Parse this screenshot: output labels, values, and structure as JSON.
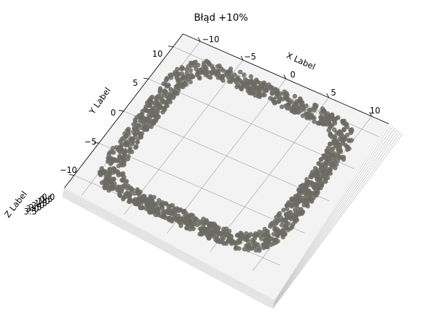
{
  "chart_data": {
    "type": "scatter3d",
    "title": "Błąd +10%",
    "xlabel": "X Label",
    "ylabel": "Y Label",
    "zlabel": "Z Label",
    "xlim": [
      -12,
      12
    ],
    "ylim": [
      -12,
      12
    ],
    "x_ticks": [
      "−10",
      "−5",
      "0",
      "5",
      "10"
    ],
    "y_ticks": [
      "10",
      "5",
      "0",
      "−5",
      "−10"
    ],
    "z_ticks": [
      "0.0",
      "0.5",
      "1.0",
      "1.5",
      "2.0",
      "2.5",
      "3.0",
      "3.5"
    ],
    "grid": true,
    "marker_color": "#6b6b63",
    "series": [
      {
        "shape": "rounded-square ring",
        "half_width": 9.5,
        "band_width": 2.0,
        "z": 0
      }
    ]
  }
}
